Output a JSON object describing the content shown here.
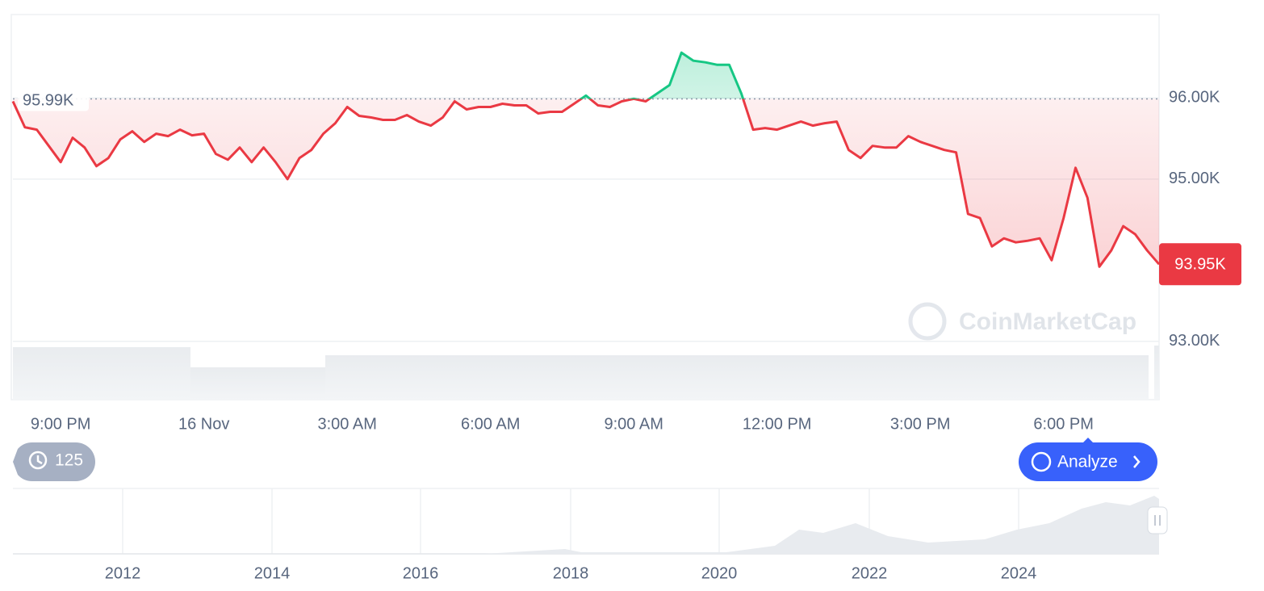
{
  "chart_data": {
    "type": "line",
    "categories": [
      null,
      null,
      null,
      null,
      "9:00 PM",
      null,
      null,
      null,
      null,
      null,
      null,
      null,
      null,
      null,
      null,
      null,
      "16 Nov",
      null,
      null,
      null,
      null,
      null,
      null,
      null,
      null,
      null,
      null,
      null,
      "3:00 AM",
      null,
      null,
      null,
      null,
      null,
      null,
      null,
      null,
      null,
      null,
      null,
      "6:00 AM",
      null,
      null,
      null,
      null,
      null,
      null,
      null,
      null,
      null,
      null,
      null,
      "9:00 AM",
      null,
      null,
      null,
      null,
      null,
      null,
      null,
      null,
      null,
      null,
      null,
      "12:00 PM",
      null,
      null,
      null,
      null,
      null,
      null,
      null,
      null,
      null,
      null,
      null,
      "3:00 PM",
      null,
      null,
      null,
      null,
      null,
      null,
      null,
      null,
      null,
      null,
      null,
      "6:00 PM",
      null,
      null,
      null,
      null,
      null,
      null,
      null,
      null
    ],
    "values": [
      95960,
      95640,
      95610,
      95410,
      95210,
      95510,
      95390,
      95160,
      95260,
      95490,
      95590,
      95460,
      95560,
      95530,
      95610,
      95540,
      95560,
      95310,
      95240,
      95390,
      95210,
      95390,
      95210,
      95000,
      95260,
      95360,
      95560,
      95690,
      95890,
      95780,
      95760,
      95730,
      95730,
      95790,
      95710,
      95660,
      95760,
      95960,
      95860,
      95890,
      95890,
      95930,
      95910,
      95910,
      95810,
      95830,
      95830,
      95930,
      96030,
      95910,
      95890,
      95960,
      95990,
      95960,
      96060,
      96160,
      96560,
      96460,
      96440,
      96410,
      96410,
      96060,
      95610,
      95630,
      95610,
      95660,
      95710,
      95660,
      95690,
      95710,
      95360,
      95260,
      95410,
      95390,
      95390,
      95530,
      95460,
      95410,
      95360,
      95330,
      94570,
      94520,
      94170,
      94270,
      94220,
      94240,
      94270,
      94000,
      94520,
      95140,
      94770,
      93920,
      94120,
      94420,
      94320,
      94120,
      93950
    ],
    "color_up": "#16c784",
    "color_down": "#ea3943",
    "ylim": [
      92280,
      97030
    ],
    "yticks": [
      {
        "value": 93000,
        "label": "93.00K"
      },
      {
        "value": 95000,
        "label": "95.00K"
      },
      {
        "value": 96000,
        "label": "96.00K"
      }
    ],
    "grid": true,
    "baseline": {
      "value": 95990,
      "label": "95.99K"
    },
    "last_price": {
      "value": 93950,
      "label": "93.95K"
    },
    "watermark": "CoinMarketCap",
    "history_count": 125,
    "analyze_button": "Analyze",
    "navigator_ticks": [
      "2012",
      "2014",
      "2016",
      "2018",
      "2020",
      "2022",
      "2024"
    ]
  }
}
